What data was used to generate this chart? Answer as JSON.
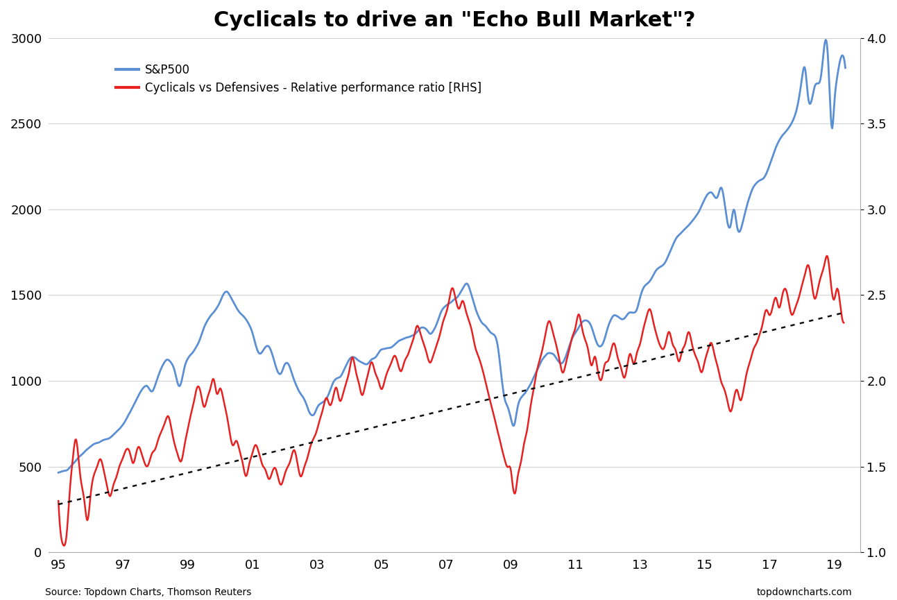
{
  "title": "Cyclicals to drive an \"Echo Bull Market\"?",
  "title_fontsize": 22,
  "legend_sp500": "S&P500",
  "legend_ratio": "Cyclicals vs Defensives - Relative performance ratio [RHS]",
  "xlabel_ticks": [
    "95",
    "97",
    "99",
    "01",
    "03",
    "05",
    "07",
    "09",
    "11",
    "13",
    "15",
    "17",
    "19"
  ],
  "xlabel_tick_pos": [
    1995,
    1997,
    1999,
    2001,
    2003,
    2005,
    2007,
    2009,
    2011,
    2013,
    2015,
    2017,
    2019
  ],
  "ylim_left": [
    0,
    3000
  ],
  "ylim_right": [
    1.0,
    4.0
  ],
  "yticks_left": [
    0,
    500,
    1000,
    1500,
    2000,
    2500,
    3000
  ],
  "yticks_right": [
    1.0,
    1.5,
    2.0,
    2.5,
    3.0,
    3.5,
    4.0
  ],
  "sp500_color": "#5b8fd4",
  "ratio_color": "#e82020",
  "trendline_color": "#111111",
  "source_left": "Source: Topdown Charts, Thomson Reuters",
  "source_right": "topdowncharts.com",
  "background_color": "#ffffff",
  "sp500_key_points": [
    [
      1995.0,
      460
    ],
    [
      1995.5,
      530
    ],
    [
      1996.0,
      620
    ],
    [
      1996.5,
      660
    ],
    [
      1997.0,
      750
    ],
    [
      1997.5,
      920
    ],
    [
      1997.75,
      970
    ],
    [
      1997.9,
      940
    ],
    [
      1998.0,
      980
    ],
    [
      1998.4,
      1120
    ],
    [
      1998.6,
      1050
    ],
    [
      1998.75,
      970
    ],
    [
      1998.9,
      1080
    ],
    [
      1999.0,
      1130
    ],
    [
      1999.3,
      1200
    ],
    [
      1999.5,
      1310
    ],
    [
      1999.8,
      1400
    ],
    [
      2000.0,
      1460
    ],
    [
      2000.2,
      1520
    ],
    [
      2000.5,
      1430
    ],
    [
      2000.7,
      1380
    ],
    [
      2001.0,
      1280
    ],
    [
      2001.2,
      1160
    ],
    [
      2001.5,
      1200
    ],
    [
      2001.7,
      1100
    ],
    [
      2001.9,
      1050
    ],
    [
      2002.0,
      1100
    ],
    [
      2002.3,
      1000
    ],
    [
      2002.5,
      920
    ],
    [
      2002.7,
      850
    ],
    [
      2002.9,
      800
    ],
    [
      2003.0,
      840
    ],
    [
      2003.3,
      900
    ],
    [
      2003.5,
      980
    ],
    [
      2003.8,
      1050
    ],
    [
      2004.0,
      1130
    ],
    [
      2004.3,
      1120
    ],
    [
      2004.5,
      1100
    ],
    [
      2004.8,
      1140
    ],
    [
      2005.0,
      1180
    ],
    [
      2005.3,
      1200
    ],
    [
      2005.5,
      1230
    ],
    [
      2005.8,
      1260
    ],
    [
      2006.0,
      1270
    ],
    [
      2006.3,
      1310
    ],
    [
      2006.5,
      1280
    ],
    [
      2006.7,
      1330
    ],
    [
      2006.9,
      1420
    ],
    [
      2007.0,
      1440
    ],
    [
      2007.3,
      1480
    ],
    [
      2007.5,
      1530
    ],
    [
      2007.65,
      1560
    ],
    [
      2007.8,
      1490
    ],
    [
      2007.9,
      1430
    ],
    [
      2008.0,
      1380
    ],
    [
      2008.2,
      1320
    ],
    [
      2008.4,
      1280
    ],
    [
      2008.6,
      1200
    ],
    [
      2008.8,
      900
    ],
    [
      2008.9,
      850
    ],
    [
      2009.0,
      780
    ],
    [
      2009.1,
      740
    ],
    [
      2009.2,
      840
    ],
    [
      2009.4,
      920
    ],
    [
      2009.6,
      980
    ],
    [
      2009.8,
      1060
    ],
    [
      2010.0,
      1130
    ],
    [
      2010.2,
      1170
    ],
    [
      2010.4,
      1130
    ],
    [
      2010.6,
      1100
    ],
    [
      2010.8,
      1200
    ],
    [
      2011.0,
      1280
    ],
    [
      2011.2,
      1340
    ],
    [
      2011.5,
      1310
    ],
    [
      2011.7,
      1200
    ],
    [
      2011.9,
      1250
    ],
    [
      2012.0,
      1310
    ],
    [
      2012.2,
      1380
    ],
    [
      2012.5,
      1360
    ],
    [
      2012.7,
      1400
    ],
    [
      2012.9,
      1410
    ],
    [
      2013.0,
      1480
    ],
    [
      2013.3,
      1580
    ],
    [
      2013.5,
      1640
    ],
    [
      2013.8,
      1700
    ],
    [
      2014.0,
      1790
    ],
    [
      2014.3,
      1870
    ],
    [
      2014.5,
      1900
    ],
    [
      2014.8,
      1990
    ],
    [
      2015.0,
      2060
    ],
    [
      2015.2,
      2100
    ],
    [
      2015.4,
      2070
    ],
    [
      2015.5,
      2120
    ],
    [
      2015.6,
      2050
    ],
    [
      2015.8,
      1900
    ],
    [
      2015.9,
      2000
    ],
    [
      2016.0,
      1900
    ],
    [
      2016.2,
      1940
    ],
    [
      2016.4,
      2080
    ],
    [
      2016.6,
      2160
    ],
    [
      2016.8,
      2180
    ],
    [
      2017.0,
      2250
    ],
    [
      2017.2,
      2360
    ],
    [
      2017.4,
      2430
    ],
    [
      2017.6,
      2470
    ],
    [
      2017.8,
      2550
    ],
    [
      2018.0,
      2750
    ],
    [
      2018.1,
      2820
    ],
    [
      2018.2,
      2650
    ],
    [
      2018.4,
      2720
    ],
    [
      2018.6,
      2780
    ],
    [
      2018.8,
      2920
    ],
    [
      2018.95,
      2480
    ],
    [
      2019.0,
      2600
    ],
    [
      2019.1,
      2780
    ],
    [
      2019.25,
      2900
    ],
    [
      2019.35,
      2820
    ]
  ],
  "ratio_key_points": [
    [
      1995.0,
      1.3
    ],
    [
      1995.05,
      1.15
    ],
    [
      1995.15,
      1.05
    ],
    [
      1995.25,
      1.1
    ],
    [
      1995.35,
      1.35
    ],
    [
      1995.45,
      1.55
    ],
    [
      1995.55,
      1.65
    ],
    [
      1995.6,
      1.58
    ],
    [
      1995.7,
      1.4
    ],
    [
      1995.8,
      1.3
    ],
    [
      1995.9,
      1.2
    ],
    [
      1996.0,
      1.35
    ],
    [
      1996.1,
      1.45
    ],
    [
      1996.2,
      1.5
    ],
    [
      1996.3,
      1.55
    ],
    [
      1996.4,
      1.48
    ],
    [
      1996.5,
      1.38
    ],
    [
      1996.6,
      1.32
    ],
    [
      1996.7,
      1.4
    ],
    [
      1996.8,
      1.45
    ],
    [
      1996.9,
      1.5
    ],
    [
      1997.0,
      1.55
    ],
    [
      1997.1,
      1.6
    ],
    [
      1997.2,
      1.58
    ],
    [
      1997.3,
      1.52
    ],
    [
      1997.4,
      1.58
    ],
    [
      1997.5,
      1.62
    ],
    [
      1997.6,
      1.56
    ],
    [
      1997.7,
      1.5
    ],
    [
      1997.8,
      1.52
    ],
    [
      1997.9,
      1.58
    ],
    [
      1998.0,
      1.62
    ],
    [
      1998.1,
      1.68
    ],
    [
      1998.2,
      1.72
    ],
    [
      1998.3,
      1.76
    ],
    [
      1998.4,
      1.8
    ],
    [
      1998.5,
      1.72
    ],
    [
      1998.6,
      1.62
    ],
    [
      1998.7,
      1.55
    ],
    [
      1998.8,
      1.52
    ],
    [
      1998.9,
      1.62
    ],
    [
      1999.0,
      1.72
    ],
    [
      1999.1,
      1.8
    ],
    [
      1999.2,
      1.88
    ],
    [
      1999.3,
      1.95
    ],
    [
      1999.4,
      1.92
    ],
    [
      1999.5,
      1.85
    ],
    [
      1999.6,
      1.9
    ],
    [
      1999.7,
      1.95
    ],
    [
      1999.8,
      2.0
    ],
    [
      1999.9,
      1.92
    ],
    [
      2000.0,
      1.95
    ],
    [
      2000.1,
      1.88
    ],
    [
      2000.2,
      1.8
    ],
    [
      2000.3,
      1.7
    ],
    [
      2000.4,
      1.62
    ],
    [
      2000.5,
      1.65
    ],
    [
      2000.6,
      1.6
    ],
    [
      2000.7,
      1.52
    ],
    [
      2000.8,
      1.45
    ],
    [
      2000.9,
      1.5
    ],
    [
      2001.0,
      1.55
    ],
    [
      2001.1,
      1.62
    ],
    [
      2001.2,
      1.58
    ],
    [
      2001.3,
      1.52
    ],
    [
      2001.4,
      1.48
    ],
    [
      2001.5,
      1.42
    ],
    [
      2001.6,
      1.45
    ],
    [
      2001.7,
      1.5
    ],
    [
      2001.8,
      1.45
    ],
    [
      2001.9,
      1.4
    ],
    [
      2002.0,
      1.45
    ],
    [
      2002.1,
      1.5
    ],
    [
      2002.2,
      1.55
    ],
    [
      2002.3,
      1.6
    ],
    [
      2002.4,
      1.52
    ],
    [
      2002.5,
      1.45
    ],
    [
      2002.6,
      1.5
    ],
    [
      2002.7,
      1.55
    ],
    [
      2002.8,
      1.62
    ],
    [
      2002.9,
      1.68
    ],
    [
      2003.0,
      1.72
    ],
    [
      2003.1,
      1.78
    ],
    [
      2003.2,
      1.85
    ],
    [
      2003.3,
      1.9
    ],
    [
      2003.4,
      1.85
    ],
    [
      2003.5,
      1.9
    ],
    [
      2003.6,
      1.95
    ],
    [
      2003.7,
      1.88
    ],
    [
      2003.8,
      1.92
    ],
    [
      2003.9,
      1.98
    ],
    [
      2004.0,
      2.05
    ],
    [
      2004.1,
      2.12
    ],
    [
      2004.2,
      2.05
    ],
    [
      2004.3,
      1.98
    ],
    [
      2004.4,
      1.92
    ],
    [
      2004.5,
      1.98
    ],
    [
      2004.6,
      2.05
    ],
    [
      2004.7,
      2.1
    ],
    [
      2004.8,
      2.05
    ],
    [
      2004.9,
      2.0
    ],
    [
      2005.0,
      1.95
    ],
    [
      2005.1,
      2.0
    ],
    [
      2005.2,
      2.05
    ],
    [
      2005.3,
      2.1
    ],
    [
      2005.4,
      2.15
    ],
    [
      2005.5,
      2.1
    ],
    [
      2005.6,
      2.05
    ],
    [
      2005.7,
      2.1
    ],
    [
      2005.8,
      2.15
    ],
    [
      2005.9,
      2.2
    ],
    [
      2006.0,
      2.25
    ],
    [
      2006.1,
      2.32
    ],
    [
      2006.2,
      2.28
    ],
    [
      2006.3,
      2.2
    ],
    [
      2006.4,
      2.15
    ],
    [
      2006.5,
      2.1
    ],
    [
      2006.6,
      2.15
    ],
    [
      2006.7,
      2.22
    ],
    [
      2006.8,
      2.28
    ],
    [
      2006.9,
      2.35
    ],
    [
      2007.0,
      2.4
    ],
    [
      2007.1,
      2.48
    ],
    [
      2007.2,
      2.55
    ],
    [
      2007.3,
      2.48
    ],
    [
      2007.4,
      2.42
    ],
    [
      2007.5,
      2.48
    ],
    [
      2007.6,
      2.42
    ],
    [
      2007.7,
      2.35
    ],
    [
      2007.8,
      2.28
    ],
    [
      2007.9,
      2.2
    ],
    [
      2008.0,
      2.15
    ],
    [
      2008.1,
      2.08
    ],
    [
      2008.2,
      2.0
    ],
    [
      2008.3,
      1.92
    ],
    [
      2008.4,
      1.85
    ],
    [
      2008.5,
      1.78
    ],
    [
      2008.6,
      1.7
    ],
    [
      2008.7,
      1.62
    ],
    [
      2008.8,
      1.55
    ],
    [
      2008.9,
      1.5
    ],
    [
      2009.0,
      1.48
    ],
    [
      2009.05,
      1.4
    ],
    [
      2009.15,
      1.35
    ],
    [
      2009.2,
      1.42
    ],
    [
      2009.3,
      1.52
    ],
    [
      2009.4,
      1.62
    ],
    [
      2009.5,
      1.72
    ],
    [
      2009.6,
      1.85
    ],
    [
      2009.7,
      1.95
    ],
    [
      2009.8,
      2.05
    ],
    [
      2009.9,
      2.12
    ],
    [
      2010.0,
      2.2
    ],
    [
      2010.1,
      2.3
    ],
    [
      2010.2,
      2.35
    ],
    [
      2010.3,
      2.28
    ],
    [
      2010.4,
      2.2
    ],
    [
      2010.5,
      2.12
    ],
    [
      2010.6,
      2.05
    ],
    [
      2010.7,
      2.1
    ],
    [
      2010.8,
      2.18
    ],
    [
      2010.9,
      2.25
    ],
    [
      2011.0,
      2.3
    ],
    [
      2011.1,
      2.38
    ],
    [
      2011.2,
      2.32
    ],
    [
      2011.3,
      2.25
    ],
    [
      2011.4,
      2.18
    ],
    [
      2011.5,
      2.1
    ],
    [
      2011.6,
      2.15
    ],
    [
      2011.7,
      2.05
    ],
    [
      2011.8,
      2.0
    ],
    [
      2011.9,
      2.08
    ],
    [
      2012.0,
      2.12
    ],
    [
      2012.1,
      2.18
    ],
    [
      2012.2,
      2.22
    ],
    [
      2012.3,
      2.15
    ],
    [
      2012.4,
      2.08
    ],
    [
      2012.5,
      2.02
    ],
    [
      2012.6,
      2.08
    ],
    [
      2012.7,
      2.15
    ],
    [
      2012.8,
      2.1
    ],
    [
      2012.9,
      2.18
    ],
    [
      2013.0,
      2.22
    ],
    [
      2013.1,
      2.3
    ],
    [
      2013.2,
      2.38
    ],
    [
      2013.3,
      2.42
    ],
    [
      2013.4,
      2.35
    ],
    [
      2013.5,
      2.28
    ],
    [
      2013.6,
      2.22
    ],
    [
      2013.7,
      2.18
    ],
    [
      2013.8,
      2.22
    ],
    [
      2013.9,
      2.28
    ],
    [
      2014.0,
      2.22
    ],
    [
      2014.1,
      2.18
    ],
    [
      2014.2,
      2.12
    ],
    [
      2014.3,
      2.18
    ],
    [
      2014.4,
      2.22
    ],
    [
      2014.5,
      2.28
    ],
    [
      2014.6,
      2.22
    ],
    [
      2014.7,
      2.15
    ],
    [
      2014.8,
      2.1
    ],
    [
      2014.9,
      2.05
    ],
    [
      2015.0,
      2.12
    ],
    [
      2015.1,
      2.18
    ],
    [
      2015.2,
      2.22
    ],
    [
      2015.3,
      2.15
    ],
    [
      2015.4,
      2.08
    ],
    [
      2015.5,
      2.0
    ],
    [
      2015.6,
      1.95
    ],
    [
      2015.7,
      1.88
    ],
    [
      2015.8,
      1.82
    ],
    [
      2015.9,
      1.9
    ],
    [
      2016.0,
      1.95
    ],
    [
      2016.1,
      1.88
    ],
    [
      2016.2,
      1.95
    ],
    [
      2016.3,
      2.05
    ],
    [
      2016.4,
      2.12
    ],
    [
      2016.5,
      2.18
    ],
    [
      2016.6,
      2.22
    ],
    [
      2016.7,
      2.28
    ],
    [
      2016.8,
      2.35
    ],
    [
      2016.9,
      2.42
    ],
    [
      2017.0,
      2.38
    ],
    [
      2017.1,
      2.42
    ],
    [
      2017.2,
      2.48
    ],
    [
      2017.3,
      2.42
    ],
    [
      2017.4,
      2.48
    ],
    [
      2017.5,
      2.52
    ],
    [
      2017.6,
      2.45
    ],
    [
      2017.7,
      2.38
    ],
    [
      2017.8,
      2.42
    ],
    [
      2017.9,
      2.48
    ],
    [
      2018.0,
      2.55
    ],
    [
      2018.1,
      2.62
    ],
    [
      2018.2,
      2.68
    ],
    [
      2018.3,
      2.58
    ],
    [
      2018.4,
      2.48
    ],
    [
      2018.5,
      2.55
    ],
    [
      2018.6,
      2.62
    ],
    [
      2018.7,
      2.68
    ],
    [
      2018.8,
      2.72
    ],
    [
      2018.9,
      2.58
    ],
    [
      2019.0,
      2.48
    ],
    [
      2019.1,
      2.55
    ],
    [
      2019.2,
      2.45
    ],
    [
      2019.3,
      2.35
    ]
  ],
  "trendline_ratio": [
    1.28,
    2.4
  ]
}
